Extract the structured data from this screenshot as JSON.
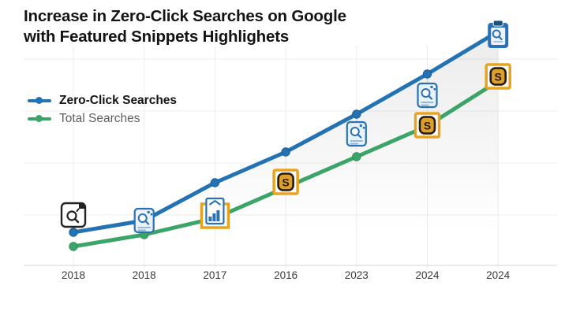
{
  "header": {
    "title_line1": "Increase in Zero-Click Searches on Google",
    "title_line2": "with Featured Snippets Highlighets"
  },
  "icons": {
    "snippet_letter": "S"
  },
  "chart_data": {
    "type": "line",
    "title": "Increase in Zero-Click Searches on Google with Featured Snippets Highlighets",
    "categories": [
      "2018",
      "2018",
      "2017",
      "2016",
      "2023",
      "2024",
      "2024"
    ],
    "series": [
      {
        "name": "Zero-Click Searches",
        "color": "#2272b4",
        "dot_stroke": "#1b5e98",
        "bold_legend": true,
        "values": [
          14,
          19,
          35,
          48,
          64,
          81,
          99
        ]
      },
      {
        "name": "Total Searches",
        "color": "#3ba567",
        "dot_stroke": "#2f8f57",
        "bold_legend": false,
        "values": [
          8,
          13,
          20,
          33,
          46,
          59,
          78
        ]
      }
    ],
    "ylim": [
      0,
      105
    ],
    "xlabel": "",
    "ylabel": "",
    "grid": true,
    "legend_position": "top-left",
    "area_fill": "soft gray gradient fading downward under the Zero-Click Searches line",
    "accent_colors": {
      "highlight_box": "#e9a31f",
      "snippet_badge_fill": "#dd9f2b",
      "snippet_badge_ink": "#26190d",
      "doc_icon_blue": "#2a72b5"
    },
    "markers": [
      {
        "point": 0,
        "series": 0,
        "type": "search-box",
        "dy": -22
      },
      {
        "point": 1,
        "series": 0,
        "type": "doc-magnifier",
        "dy": 0
      },
      {
        "point": 2,
        "series": 1,
        "type": "chart-doc-highlight",
        "dy": -8
      },
      {
        "point": 3,
        "series": 1,
        "type": "s-badge",
        "dy": -7
      },
      {
        "point": 4,
        "series": 0,
        "type": "doc-magnifier",
        "dy": 25
      },
      {
        "point": 5,
        "series": 0,
        "type": "doc-magnifier",
        "dy": 27
      },
      {
        "point": 5,
        "series": 1,
        "type": "s-badge",
        "dy": -1
      },
      {
        "point": 6,
        "series": 0,
        "type": "clipboard-magnifier",
        "dy": 5
      },
      {
        "point": 6,
        "series": 1,
        "type": "s-badge",
        "dy": -6
      }
    ]
  }
}
